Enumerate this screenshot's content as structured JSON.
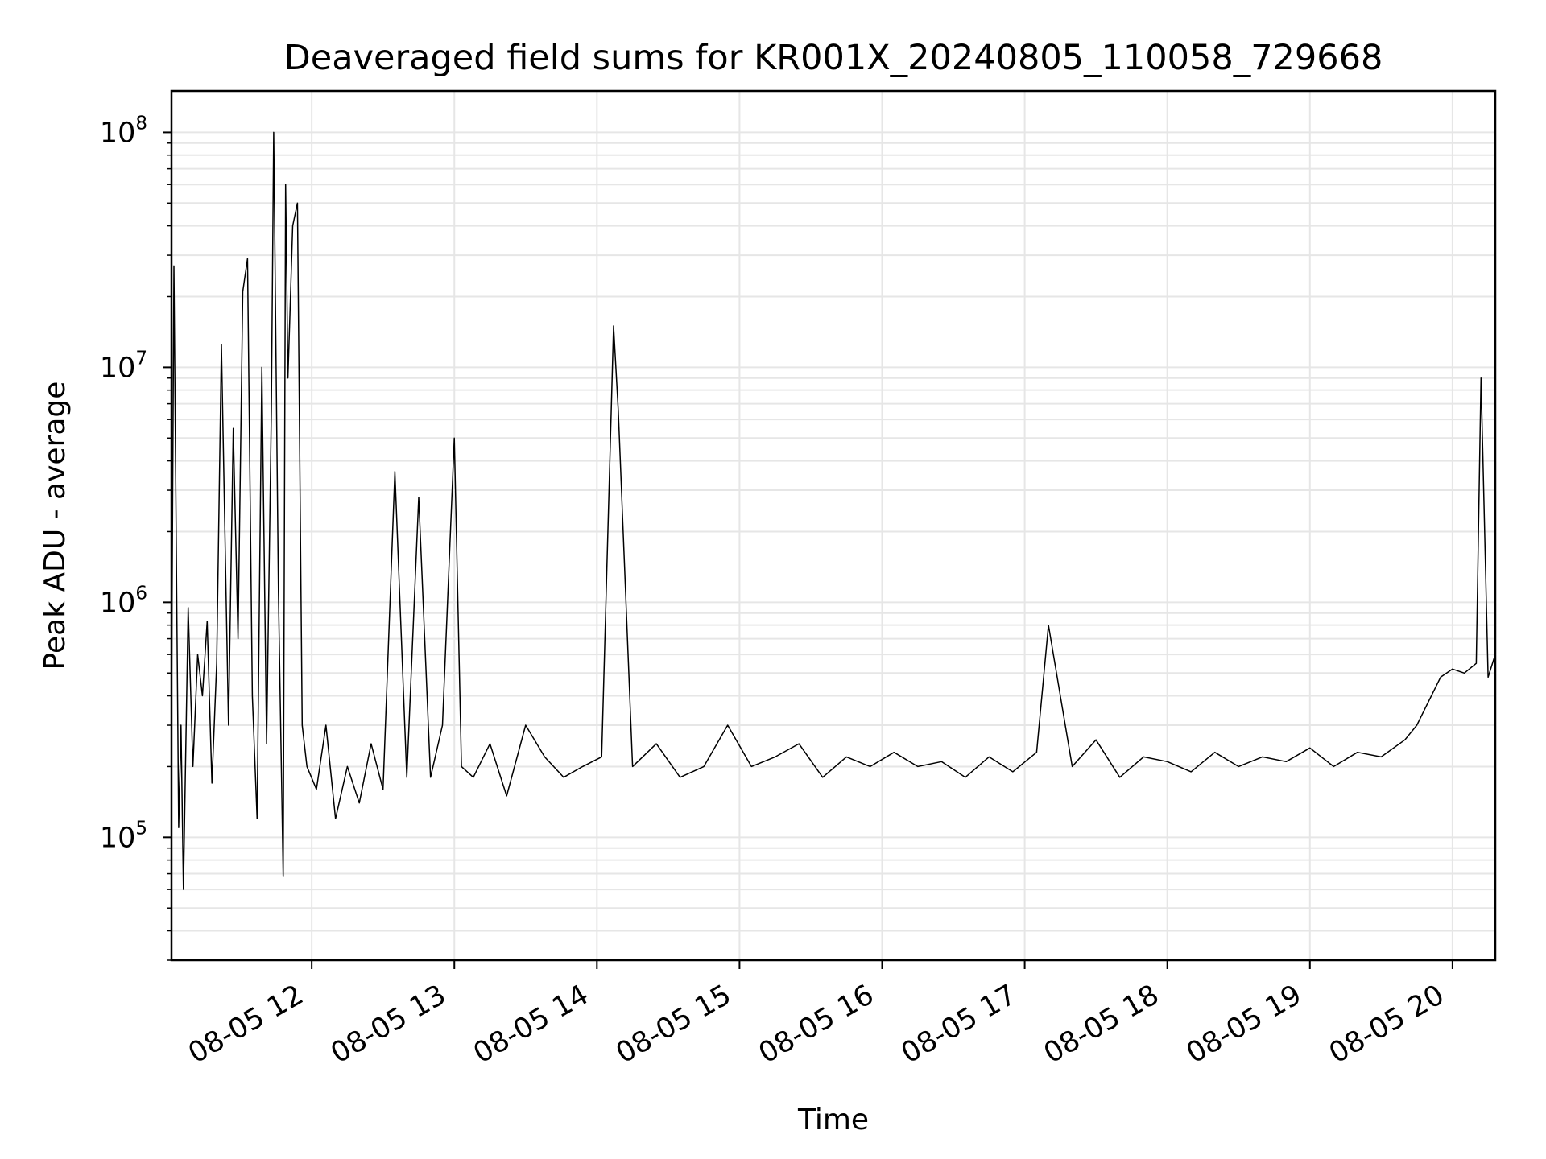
{
  "chart_data": {
    "type": "line",
    "title": "Deaveraged field sums for KR001X_20240805_110058_729668",
    "xlabel": "Time",
    "ylabel": "Peak ADU - average",
    "yscale": "log",
    "ylim": [
      30000,
      150000000
    ],
    "xlim": [
      "2024-08-05 11:01",
      "2024-08-05 20:18"
    ],
    "grid": true,
    "line_color": "#000000",
    "grid_color": "#e6e6e6",
    "x_ticks": [
      {
        "value": "2024-08-05 12:00",
        "label": "08-05 12"
      },
      {
        "value": "2024-08-05 13:00",
        "label": "08-05 13"
      },
      {
        "value": "2024-08-05 14:00",
        "label": "08-05 14"
      },
      {
        "value": "2024-08-05 15:00",
        "label": "08-05 15"
      },
      {
        "value": "2024-08-05 16:00",
        "label": "08-05 16"
      },
      {
        "value": "2024-08-05 17:00",
        "label": "08-05 17"
      },
      {
        "value": "2024-08-05 18:00",
        "label": "08-05 18"
      },
      {
        "value": "2024-08-05 19:00",
        "label": "08-05 19"
      },
      {
        "value": "2024-08-05 20:00",
        "label": "08-05 20"
      }
    ],
    "y_ticks": [
      {
        "value": 100000,
        "base": "10",
        "exp": "5"
      },
      {
        "value": 1000000,
        "base": "10",
        "exp": "6"
      },
      {
        "value": 10000000,
        "base": "10",
        "exp": "7"
      },
      {
        "value": 100000000,
        "base": "10",
        "exp": "8"
      }
    ],
    "series": [
      {
        "x": [
          "2024-08-05 11:01",
          "2024-08-05 11:02",
          "2024-08-05 11:04",
          "2024-08-05 11:05",
          "2024-08-05 11:06",
          "2024-08-05 11:08",
          "2024-08-05 11:10",
          "2024-08-05 11:12",
          "2024-08-05 11:14",
          "2024-08-05 11:16",
          "2024-08-05 11:18",
          "2024-08-05 11:20",
          "2024-08-05 11:22",
          "2024-08-05 11:25",
          "2024-08-05 11:27",
          "2024-08-05 11:29",
          "2024-08-05 11:31",
          "2024-08-05 11:33",
          "2024-08-05 11:35",
          "2024-08-05 11:37",
          "2024-08-05 11:39",
          "2024-08-05 11:41",
          "2024-08-05 11:43",
          "2024-08-05 11:44",
          "2024-08-05 11:46",
          "2024-08-05 11:48",
          "2024-08-05 11:49",
          "2024-08-05 11:50",
          "2024-08-05 11:52",
          "2024-08-05 11:54",
          "2024-08-05 11:56",
          "2024-08-05 11:58",
          "2024-08-05 12:02",
          "2024-08-05 12:06",
          "2024-08-05 12:10",
          "2024-08-05 12:15",
          "2024-08-05 12:20",
          "2024-08-05 12:25",
          "2024-08-05 12:30",
          "2024-08-05 12:35",
          "2024-08-05 12:40",
          "2024-08-05 12:45",
          "2024-08-05 12:50",
          "2024-08-05 12:55",
          "2024-08-05 13:00",
          "2024-08-05 13:03",
          "2024-08-05 13:08",
          "2024-08-05 13:15",
          "2024-08-05 13:22",
          "2024-08-05 13:30",
          "2024-08-05 13:38",
          "2024-08-05 13:46",
          "2024-08-05 13:54",
          "2024-08-05 14:02",
          "2024-08-05 14:07",
          "2024-08-05 14:09",
          "2024-08-05 14:15",
          "2024-08-05 14:25",
          "2024-08-05 14:35",
          "2024-08-05 14:45",
          "2024-08-05 14:55",
          "2024-08-05 15:05",
          "2024-08-05 15:15",
          "2024-08-05 15:25",
          "2024-08-05 15:35",
          "2024-08-05 15:45",
          "2024-08-05 15:55",
          "2024-08-05 16:05",
          "2024-08-05 16:15",
          "2024-08-05 16:25",
          "2024-08-05 16:35",
          "2024-08-05 16:45",
          "2024-08-05 16:55",
          "2024-08-05 17:05",
          "2024-08-05 17:10",
          "2024-08-05 17:20",
          "2024-08-05 17:30",
          "2024-08-05 17:40",
          "2024-08-05 17:50",
          "2024-08-05 18:00",
          "2024-08-05 18:10",
          "2024-08-05 18:20",
          "2024-08-05 18:30",
          "2024-08-05 18:40",
          "2024-08-05 18:50",
          "2024-08-05 19:00",
          "2024-08-05 19:10",
          "2024-08-05 19:20",
          "2024-08-05 19:30",
          "2024-08-05 19:40",
          "2024-08-05 19:45",
          "2024-08-05 19:50",
          "2024-08-05 19:55",
          "2024-08-05 20:00",
          "2024-08-05 20:05",
          "2024-08-05 20:10",
          "2024-08-05 20:12",
          "2024-08-05 20:15",
          "2024-08-05 20:18"
        ],
        "y": [
          350000,
          27000000,
          110000,
          300000,
          60000,
          950000,
          200000,
          600000,
          400000,
          830000,
          170000,
          550000,
          12500000,
          300000,
          5500000,
          700000,
          21000000,
          29000000,
          400000,
          120000,
          10000000,
          250000,
          6500000,
          100000000,
          1100000,
          68000,
          60000000,
          9000000,
          40000000,
          50000000,
          300000,
          200000,
          160000,
          300000,
          120000,
          200000,
          140000,
          250000,
          160000,
          3600000,
          180000,
          2800000,
          180000,
          300000,
          5000000,
          200000,
          180000,
          250000,
          150000,
          300000,
          220000,
          180000,
          200000,
          220000,
          15000000,
          6500000,
          200000,
          250000,
          180000,
          200000,
          300000,
          200000,
          220000,
          250000,
          180000,
          220000,
          200000,
          230000,
          200000,
          210000,
          180000,
          220000,
          190000,
          230000,
          800000,
          200000,
          260000,
          180000,
          220000,
          210000,
          190000,
          230000,
          200000,
          220000,
          210000,
          240000,
          200000,
          230000,
          220000,
          260000,
          300000,
          380000,
          480000,
          520000,
          500000,
          550000,
          9000000,
          480000,
          600000
        ]
      }
    ]
  }
}
